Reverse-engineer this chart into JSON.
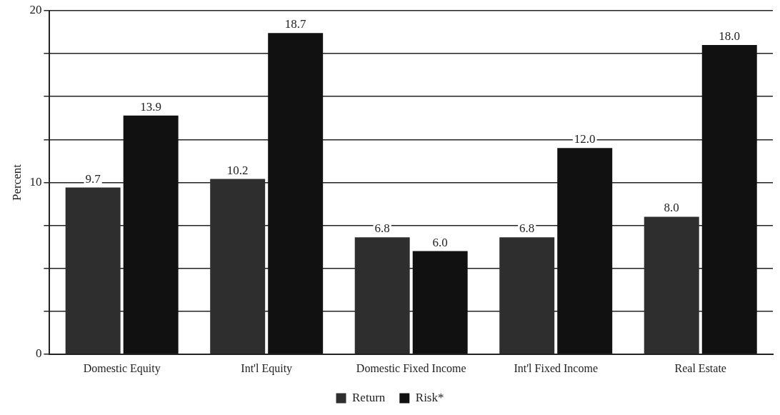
{
  "chart_data": {
    "type": "bar",
    "ylabel": "Percent",
    "categories": [
      "Domestic Equity",
      "Int'l Equity",
      "Domestic Fixed Income",
      "Int'l Fixed Income",
      "Real Estate"
    ],
    "series": [
      {
        "name": "Return",
        "color": "#2e2e2e",
        "values": [
          9.7,
          10.2,
          6.8,
          6.8,
          8.0
        ]
      },
      {
        "name": "Risk*",
        "color": "#111111",
        "values": [
          13.9,
          18.7,
          6.0,
          12.0,
          18.0
        ]
      }
    ],
    "value_labels": [
      [
        "9.7",
        "10.2",
        "6.8",
        "6.8",
        "8.0"
      ],
      [
        "13.9",
        "18.7",
        "6.0",
        "12.0",
        "18.0"
      ]
    ],
    "ylim": [
      0,
      20
    ],
    "yticks": [
      0,
      {
        "value": 2.5,
        "label": null
      },
      {
        "value": 5,
        "label": null
      },
      {
        "value": 7.5,
        "label": null
      },
      10,
      {
        "value": 12.5,
        "label": null
      },
      {
        "value": 15,
        "label": null
      },
      {
        "value": 17.5,
        "label": null
      },
      20
    ],
    "grid": "y",
    "legend": "bottom"
  }
}
